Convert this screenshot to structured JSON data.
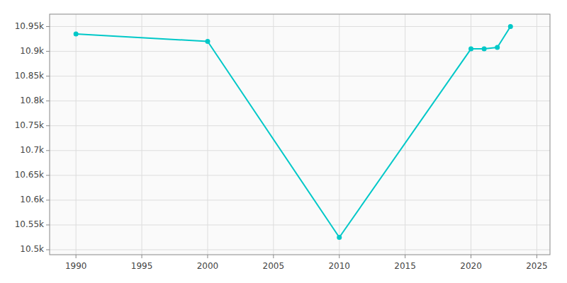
{
  "chart_data": {
    "type": "line",
    "x": [
      1990,
      2000,
      2010,
      2020,
      2021,
      2022,
      2023
    ],
    "values": [
      10935,
      10920,
      10525,
      10905,
      10905,
      10908,
      10950
    ],
    "color": "#00C8C8",
    "marker": "circle",
    "xlim": [
      1988,
      2026
    ],
    "ylim": [
      10490,
      10975
    ],
    "xticks": [
      1990,
      1995,
      2000,
      2005,
      2010,
      2015,
      2020,
      2025
    ],
    "yticks": [
      {
        "value": 10500,
        "label": "10.5k"
      },
      {
        "value": 10550,
        "label": "10.55k"
      },
      {
        "value": 10600,
        "label": "10.6k"
      },
      {
        "value": 10650,
        "label": "10.65k"
      },
      {
        "value": 10700,
        "label": "10.7k"
      },
      {
        "value": 10750,
        "label": "10.75k"
      },
      {
        "value": 10800,
        "label": "10.8k"
      },
      {
        "value": 10850,
        "label": "10.85k"
      },
      {
        "value": 10900,
        "label": "10.9k"
      },
      {
        "value": 10950,
        "label": "10.95k"
      }
    ],
    "grid": true
  }
}
